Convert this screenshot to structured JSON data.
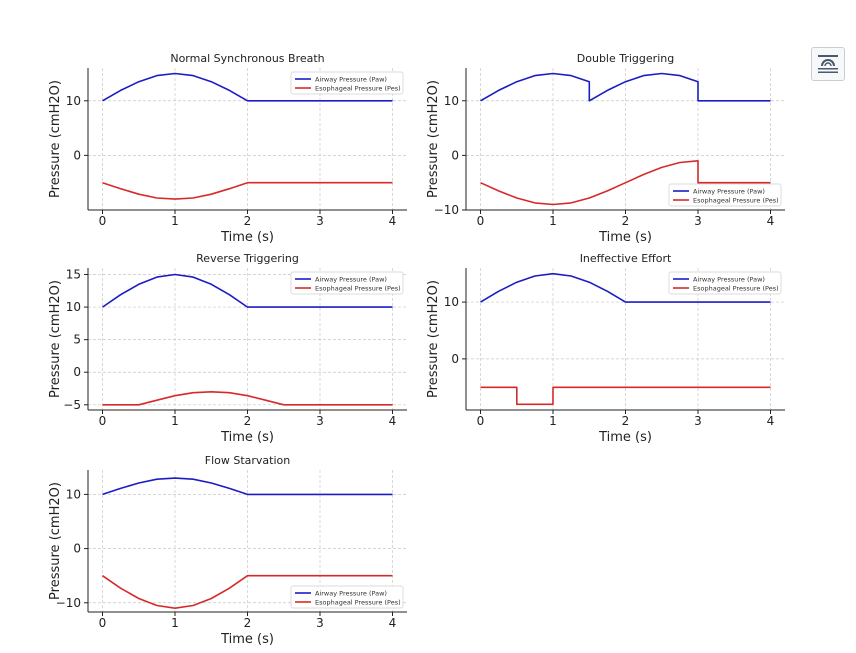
{
  "colors": {
    "paw": "#1c1cc4",
    "pes": "#d62a2a",
    "grid": "#c8c8c8"
  },
  "ui": {
    "corner_icon": "document-icon"
  },
  "chart_data": [
    {
      "type": "line",
      "title": "Normal Synchronous Breath",
      "xlabel": "Time (s)",
      "ylabel": "Pressure (cmH2O)",
      "xlim": [
        -0.2,
        4.2
      ],
      "ylim": [
        -10,
        16
      ],
      "xticks": [
        0,
        1,
        2,
        3,
        4
      ],
      "xtick_labels": [
        "0",
        "1",
        "2",
        "3",
        "4"
      ],
      "yticks": [
        0,
        10
      ],
      "ytick_labels": [
        "0",
        "10"
      ],
      "grid": true,
      "legend_position": "upper-right",
      "series": [
        {
          "name": "Airway Pressure (Paw)",
          "color": "#1c1cc4",
          "x": [
            0,
            0.25,
            0.5,
            0.75,
            1,
            1.25,
            1.5,
            1.75,
            2,
            3,
            4
          ],
          "y": [
            10,
            11.9,
            13.5,
            14.6,
            15,
            14.6,
            13.5,
            11.9,
            10,
            10,
            10
          ]
        },
        {
          "name": "Esophageal Pressure (Pes)",
          "color": "#d62a2a",
          "x": [
            0,
            0.25,
            0.5,
            0.75,
            1,
            1.25,
            1.5,
            1.75,
            2,
            3,
            4
          ],
          "y": [
            -5,
            -6.1,
            -7.1,
            -7.8,
            -8,
            -7.8,
            -7.1,
            -6.1,
            -5,
            -5,
            -5
          ]
        }
      ]
    },
    {
      "type": "line",
      "title": "Double Triggering",
      "xlabel": "Time (s)",
      "ylabel": "Pressure (cmH2O)",
      "xlim": [
        -0.2,
        4.2
      ],
      "ylim": [
        -10,
        16
      ],
      "xticks": [
        0,
        1,
        2,
        3,
        4
      ],
      "xtick_labels": [
        "0",
        "1",
        "2",
        "3",
        "4"
      ],
      "yticks": [
        -10,
        0,
        10
      ],
      "ytick_labels": [
        "−10",
        "0",
        "10"
      ],
      "grid": true,
      "legend_position": "lower-right",
      "series": [
        {
          "name": "Airway Pressure (Paw)",
          "color": "#1c1cc4",
          "x": [
            0,
            0.25,
            0.5,
            0.75,
            1,
            1.25,
            1.5,
            1.5,
            1.75,
            2,
            2.25,
            2.5,
            2.75,
            3,
            3,
            4
          ],
          "y": [
            10,
            11.9,
            13.5,
            14.6,
            15,
            14.6,
            13.5,
            10,
            11.9,
            13.5,
            14.6,
            15,
            14.6,
            13.5,
            10,
            10
          ]
        },
        {
          "name": "Esophageal Pressure (Pes)",
          "color": "#d62a2a",
          "x": [
            0,
            0.25,
            0.5,
            0.75,
            1,
            1.25,
            1.5,
            1.75,
            2,
            2.25,
            2.5,
            2.75,
            3,
            3,
            4
          ],
          "y": [
            -5,
            -6.5,
            -7.8,
            -8.7,
            -9,
            -8.7,
            -7.8,
            -6.5,
            -5,
            -3.5,
            -2.2,
            -1.3,
            -1,
            -5,
            -5
          ]
        }
      ]
    },
    {
      "type": "line",
      "title": "Reverse Triggering",
      "xlabel": "Time (s)",
      "ylabel": "Pressure (cmH2O)",
      "xlim": [
        -0.2,
        4.2
      ],
      "ylim": [
        -5.8,
        16
      ],
      "xticks": [
        0,
        1,
        2,
        3,
        4
      ],
      "xtick_labels": [
        "0",
        "1",
        "2",
        "3",
        "4"
      ],
      "yticks": [
        -5,
        0,
        5,
        10,
        15
      ],
      "ytick_labels": [
        "−5",
        "0",
        "5",
        "10",
        "15"
      ],
      "grid": true,
      "legend_position": "upper-right",
      "series": [
        {
          "name": "Airway Pressure (Paw)",
          "color": "#1c1cc4",
          "x": [
            0,
            0.25,
            0.5,
            0.75,
            1,
            1.25,
            1.5,
            1.75,
            2,
            3,
            4
          ],
          "y": [
            10,
            11.9,
            13.5,
            14.6,
            15,
            14.6,
            13.5,
            11.9,
            10,
            10,
            10
          ]
        },
        {
          "name": "Esophageal Pressure (Pes)",
          "color": "#d62a2a",
          "x": [
            0,
            0.5,
            0.75,
            1,
            1.25,
            1.5,
            1.75,
            2,
            2.25,
            2.5,
            4
          ],
          "y": [
            -5,
            -5,
            -4.3,
            -3.6,
            -3.15,
            -3,
            -3.15,
            -3.6,
            -4.3,
            -5,
            -5
          ]
        }
      ]
    },
    {
      "type": "line",
      "title": "Ineffective Effort",
      "xlabel": "Time (s)",
      "ylabel": "Pressure (cmH2O)",
      "xlim": [
        -0.2,
        4.2
      ],
      "ylim": [
        -9,
        16
      ],
      "xticks": [
        0,
        1,
        2,
        3,
        4
      ],
      "xtick_labels": [
        "0",
        "1",
        "2",
        "3",
        "4"
      ],
      "yticks": [
        0,
        10
      ],
      "ytick_labels": [
        "0",
        "10"
      ],
      "grid": true,
      "legend_position": "upper-right",
      "series": [
        {
          "name": "Airway Pressure (Paw)",
          "color": "#1c1cc4",
          "x": [
            0,
            0.25,
            0.5,
            0.75,
            1,
            1.25,
            1.5,
            1.75,
            2,
            3,
            4
          ],
          "y": [
            10,
            11.9,
            13.5,
            14.6,
            15,
            14.6,
            13.5,
            11.9,
            10,
            10,
            10
          ]
        },
        {
          "name": "Esophageal Pressure (Pes)",
          "color": "#d62a2a",
          "x": [
            0,
            0.5,
            0.5,
            1,
            1,
            4
          ],
          "y": [
            -5,
            -5,
            -8,
            -8,
            -5,
            -5
          ]
        }
      ]
    },
    {
      "type": "line",
      "title": "Flow Starvation",
      "xlabel": "Time (s)",
      "ylabel": "Pressure (cmH2O)",
      "xlim": [
        -0.2,
        4.2
      ],
      "ylim": [
        -11.7,
        14.5
      ],
      "xticks": [
        0,
        1,
        2,
        3,
        4
      ],
      "xtick_labels": [
        "0",
        "1",
        "2",
        "3",
        "4"
      ],
      "yticks": [
        -10,
        0,
        10
      ],
      "ytick_labels": [
        "−10",
        "0",
        "10"
      ],
      "grid": true,
      "legend_position": "lower-right",
      "series": [
        {
          "name": "Airway Pressure (Paw)",
          "color": "#1c1cc4",
          "x": [
            0,
            0.25,
            0.5,
            0.75,
            1,
            1.25,
            1.5,
            1.75,
            2,
            3,
            4
          ],
          "y": [
            10,
            11.1,
            12.1,
            12.8,
            13,
            12.8,
            12.1,
            11.1,
            10,
            10,
            10
          ]
        },
        {
          "name": "Esophageal Pressure (Pes)",
          "color": "#d62a2a",
          "x": [
            0,
            0.25,
            0.5,
            0.75,
            1,
            1.25,
            1.5,
            1.75,
            2,
            3,
            4
          ],
          "y": [
            -5,
            -7.3,
            -9.2,
            -10.5,
            -11,
            -10.5,
            -9.2,
            -7.3,
            -5,
            -5,
            -5
          ]
        }
      ]
    }
  ]
}
